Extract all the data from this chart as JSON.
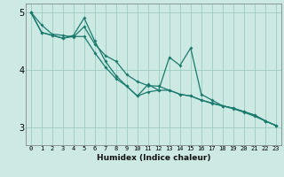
{
  "title": "",
  "xlabel": "Humidex (Indice chaleur)",
  "background_color": "#cce9e4",
  "line_color": "#1a7a6e",
  "grid_color": "#99ccc4",
  "x_ticks": [
    0,
    1,
    2,
    3,
    4,
    5,
    6,
    7,
    8,
    9,
    10,
    11,
    12,
    13,
    14,
    15,
    16,
    17,
    18,
    19,
    20,
    21,
    22,
    23
  ],
  "x_tick_labels": [
    "0",
    "1",
    "2",
    "3",
    "4",
    "5",
    "6",
    "7",
    "8",
    "9",
    "10",
    "11",
    "12",
    "13",
    "14",
    "15",
    "16",
    "17",
    "18",
    "19",
    "20",
    "21",
    "22",
    "23"
  ],
  "y_ticks": [
    3,
    4,
    5
  ],
  "ylim": [
    2.7,
    5.15
  ],
  "xlim": [
    -0.5,
    23.5
  ],
  "series": [
    [
      5.0,
      4.78,
      4.62,
      4.6,
      4.57,
      4.75,
      4.45,
      4.25,
      4.15,
      3.92,
      3.8,
      3.73,
      3.72,
      3.65,
      3.58,
      3.55,
      3.48,
      3.42,
      3.38,
      3.34,
      3.28,
      3.22,
      3.12,
      3.04
    ],
    [
      5.0,
      4.65,
      4.6,
      4.55,
      4.6,
      4.9,
      4.5,
      4.15,
      3.9,
      3.72,
      3.55,
      3.75,
      3.65,
      4.22,
      4.08,
      4.38,
      3.58,
      3.48,
      3.38,
      3.33,
      3.27,
      3.2,
      3.12,
      3.04
    ],
    [
      5.0,
      4.65,
      4.6,
      4.55,
      4.58,
      4.58,
      4.3,
      4.05,
      3.85,
      3.72,
      3.55,
      3.62,
      3.65,
      3.65,
      3.58,
      3.55,
      3.48,
      3.43,
      3.38,
      3.34,
      3.28,
      3.22,
      3.12,
      3.04
    ]
  ]
}
